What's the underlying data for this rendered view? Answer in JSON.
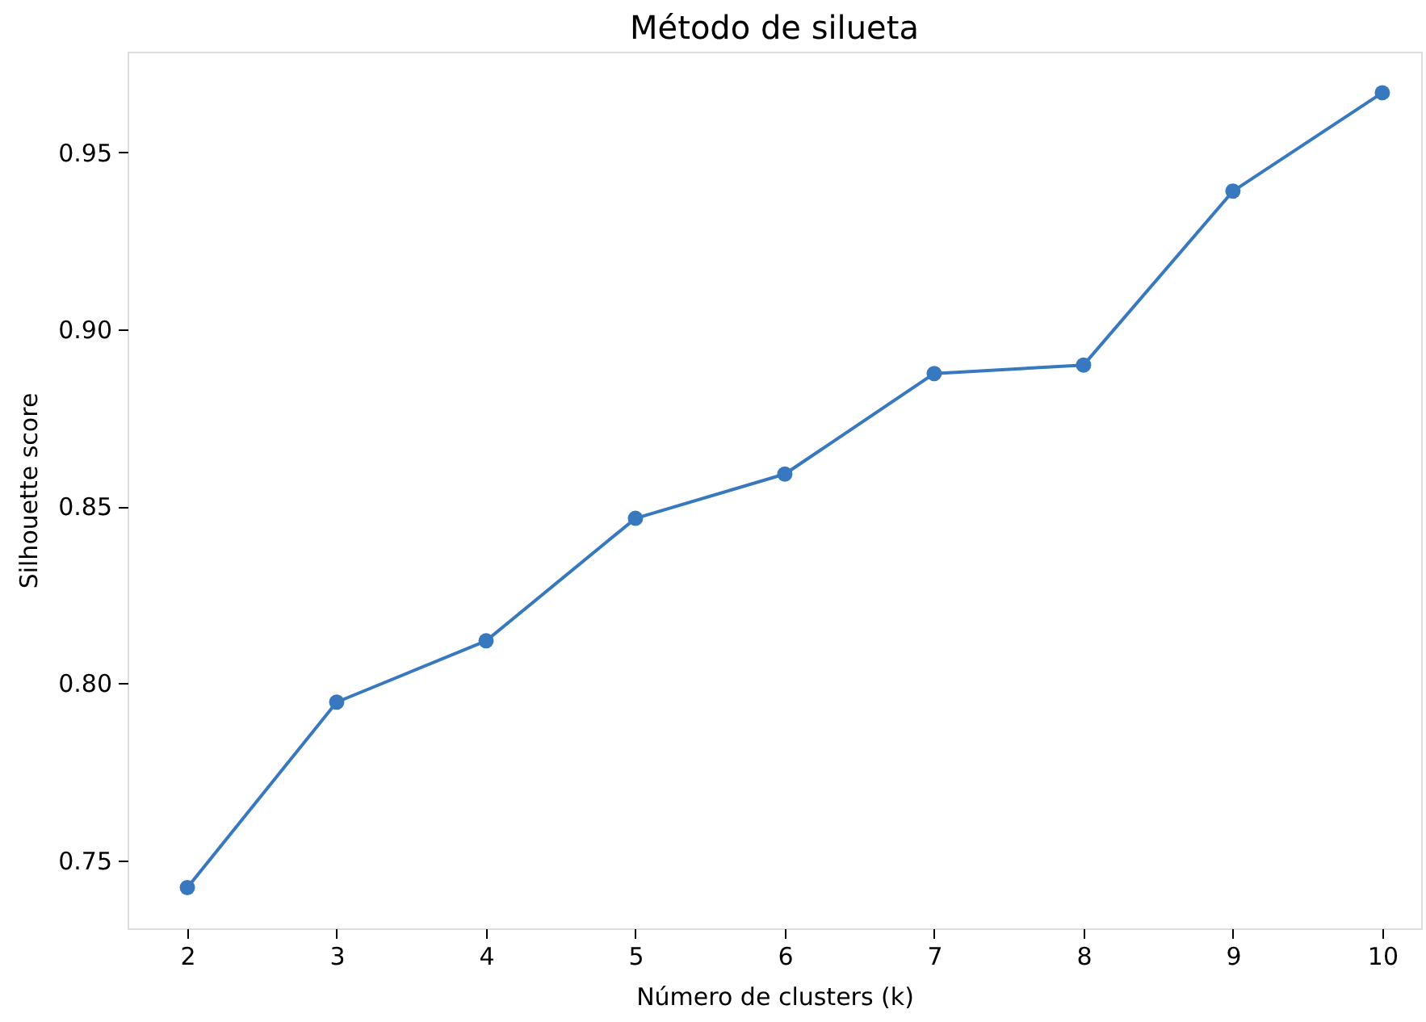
{
  "chart_data": {
    "type": "line",
    "title": "Método de silueta",
    "xlabel": "Número de clusters (k)",
    "ylabel": "Silhouette score",
    "x": [
      2,
      3,
      4,
      5,
      6,
      7,
      8,
      9,
      10
    ],
    "series": [
      {
        "color": "#3778bf",
        "values": [
          0.7423,
          0.7947,
          0.812,
          0.8466,
          0.8591,
          0.8875,
          0.8899,
          0.939,
          0.9668
        ]
      }
    ],
    "xlim": [
      1.6,
      10.26
    ],
    "xticks": [
      2,
      3,
      4,
      5,
      6,
      7,
      8,
      9,
      10
    ],
    "ylim": [
      0.7308,
      0.9784
    ],
    "yticks": [
      0.75,
      {
        "value": 0.8,
        "label": "0.80"
      },
      0.85,
      {
        "value": 0.9,
        "label": "0.90"
      },
      0.95
    ],
    "marker": "circle",
    "line_style": "solid",
    "grid": false
  }
}
